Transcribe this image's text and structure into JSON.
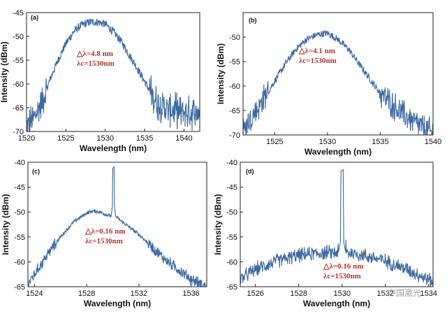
{
  "chart_data": [
    {
      "type": "line",
      "panel_label": "(a)",
      "xlabel": "Wavelength (nm)",
      "ylabel": "Intensity (dBm)",
      "xlim": [
        1520,
        1542
      ],
      "ylim": [
        -70,
        -45
      ],
      "xticks": [
        1520,
        1525,
        1530,
        1535,
        1540
      ],
      "yticks": [
        -70,
        -65,
        -60,
        -55,
        -50,
        -45
      ],
      "annotations": [
        "△λ=4.8 nm",
        "λc=1530nm"
      ],
      "series": [
        {
          "x": [
            1520,
            1521,
            1522,
            1523,
            1524,
            1525,
            1526,
            1527,
            1528,
            1529,
            1530,
            1531,
            1532,
            1533,
            1534,
            1535,
            1536,
            1537,
            1538,
            1539,
            1540,
            1541,
            1542
          ],
          "y": [
            -69,
            -67,
            -63.5,
            -59,
            -55,
            -51.5,
            -49,
            -47.6,
            -47,
            -47,
            -47.4,
            -49,
            -51,
            -53.8,
            -56.5,
            -59.5,
            -62.5,
            -64.5,
            -65.5,
            -65.5,
            -66,
            -66,
            -66
          ]
        }
      ]
    },
    {
      "type": "line",
      "panel_label": "(b)",
      "xlabel": "Wavelength (nm)",
      "ylabel": "Intensity (dBm)",
      "xlim": [
        1522,
        1540
      ],
      "ylim": [
        -70,
        -45
      ],
      "xticks": [
        1525,
        1530,
        1535,
        1540
      ],
      "yticks": [
        -70,
        -65,
        -60,
        -55,
        -50
      ],
      "annotations": [
        "△λ=4.1 nm",
        "λc=1530nm"
      ],
      "series": [
        {
          "x": [
            1522,
            1523,
            1524,
            1525,
            1526,
            1527,
            1528,
            1529,
            1530,
            1531,
            1532,
            1533,
            1534,
            1535,
            1536,
            1537,
            1538,
            1539,
            1539.8
          ],
          "y": [
            -69,
            -66,
            -62.5,
            -59,
            -55.5,
            -52.5,
            -50.5,
            -49.5,
            -49.2,
            -50.5,
            -52.5,
            -55.5,
            -58.5,
            -61.5,
            -63.5,
            -65.5,
            -67,
            -68.5,
            -69.5
          ]
        }
      ]
    },
    {
      "type": "line",
      "panel_label": "(c)",
      "xlabel": "Wavelength (nm)",
      "ylabel": "Intensity (dBm)",
      "xlim": [
        1523.5,
        1537.2
      ],
      "ylim": [
        -65,
        -40
      ],
      "xticks": [
        1524,
        1528,
        1532,
        1536
      ],
      "yticks": [
        -65,
        -60,
        -55,
        -50,
        -45,
        -40
      ],
      "annotations": [
        "△λ=0.16 nm",
        "λc=1530nm"
      ],
      "series": [
        {
          "x": [
            1523.5,
            1524,
            1525,
            1526,
            1527,
            1528,
            1528.5,
            1529,
            1529.5,
            1529.9,
            1530.0,
            1530.1,
            1530.2,
            1530.3,
            1530.5,
            1531,
            1532,
            1533,
            1534,
            1535,
            1536,
            1537.2
          ],
          "y": [
            -64.5,
            -62.5,
            -58.5,
            -55,
            -52,
            -50.2,
            -49.8,
            -50,
            -50.5,
            -50.8,
            -41.5,
            -41.2,
            -50.8,
            -51,
            -51.5,
            -52.5,
            -54.5,
            -57,
            -59.5,
            -61.5,
            -63.5,
            -65
          ]
        }
      ]
    },
    {
      "type": "line",
      "panel_label": "(d)",
      "xlabel": "Wavelength (nm)",
      "ylabel": "Intensity (dBm)",
      "xlim": [
        1525.3,
        1534.2
      ],
      "ylim": [
        -65,
        -40
      ],
      "xticks": [
        1526,
        1528,
        1530,
        1532,
        1534
      ],
      "yticks": [
        -65,
        -60,
        -55,
        -50,
        -45,
        -40
      ],
      "annotations": [
        "△λ=0.16 nm",
        "λc=1530nm"
      ],
      "series": [
        {
          "x": [
            1525.3,
            1526,
            1527,
            1528,
            1529,
            1529.8,
            1529.95,
            1530.05,
            1530.2,
            1530.4,
            1531,
            1532,
            1533,
            1534.2
          ],
          "y": [
            -63.5,
            -61.5,
            -59.8,
            -58.7,
            -58.2,
            -58.1,
            -41.8,
            -41.8,
            -58.1,
            -58.2,
            -58.7,
            -59.8,
            -61.5,
            -64
          ]
        }
      ]
    }
  ],
  "watermark": "中国激光"
}
